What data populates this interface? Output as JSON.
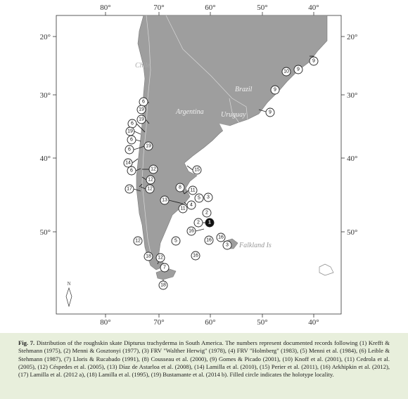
{
  "map": {
    "lon_labels": [
      "80°",
      "70°",
      "60°",
      "50°",
      "40°"
    ],
    "lat_labels": [
      "20°",
      "30°",
      "40°",
      "50°"
    ],
    "countries": [
      "Chile",
      "Argentina",
      "Brazil",
      "Uruguay"
    ],
    "islands": "Falkland Is",
    "north": "N",
    "records": [
      "6",
      "19",
      "19",
      "6",
      "19",
      "6",
      "19",
      "6",
      "14",
      "6",
      "12",
      "12",
      "12",
      "17",
      "12",
      "8",
      "11",
      "13",
      "5",
      "3",
      "4",
      "11",
      "15",
      "2",
      "1",
      "2",
      "16",
      "16",
      "16",
      "3",
      "5",
      "12",
      "16",
      "18",
      "12",
      "7",
      "18",
      "10",
      "9",
      "9",
      "9",
      "9"
    ]
  },
  "caption": {
    "fig": "Fig. 7.",
    "text": "Distribution of the roughskin skate Dipturus trachyderma in South America. The numbers represent documented records following (1) Krefft & Stehmann (1975), (2) Menni & Gosztonyi (1977), (3) FRV \"Walther Herwig\" (1978), (4) FRV \"Holmberg\" (1983), (5) Menni et al. (1984), (6) Leible & Stehmann (1987), (7) Lloris & Rucabado (1991), (8) Cousseau et al. (2000), (9) Gomes & Picado (2001), (10) Knoff et al. (2001), (11) Cedrola et al. (2005), (12) Céspedes et al. (2005), (13) Díaz de Astarloa et al. (2008), (14) Lamilla et al. (2010), (15) Perier et al. (2011), (16) Arkhipkin et al. (2012), (17) Lamilla et al. (2012 a), (18) Lamilla et al. (1995), (19) Bustamante et al. (2014 b). Filled circle indicates the holotype locality."
  }
}
